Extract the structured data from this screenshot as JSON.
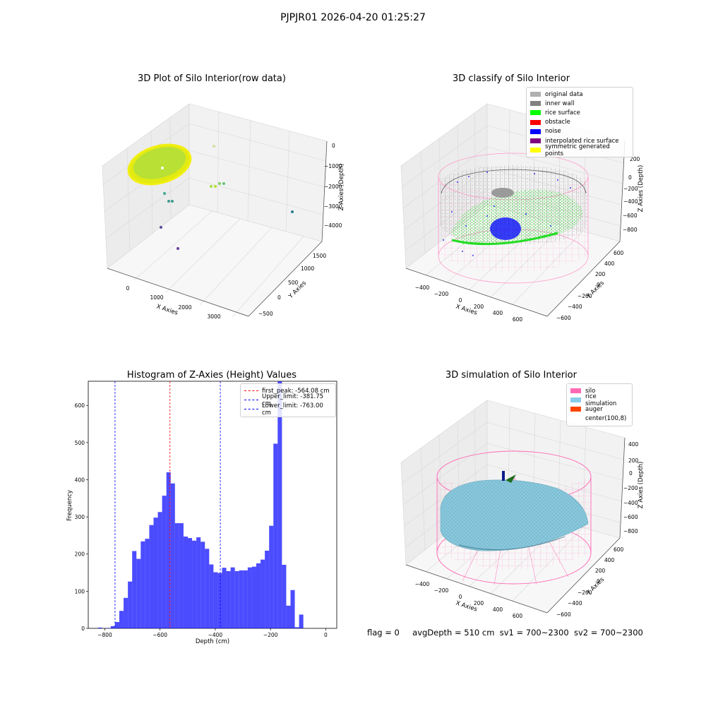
{
  "figure": {
    "suptitle": "PJPJR01 2026-04-20 01:25:27",
    "footer": {
      "flag": "flag = 0",
      "avg_depth": "avgDepth = 510 cm",
      "sv1": "sv1 = 700~2300",
      "sv2": "sv2 = 700~2300"
    }
  },
  "panels": {
    "raw": {
      "title": "3D Plot of Silo Interior(row data)",
      "xlabel": "X Axies",
      "ylabel": "Y Axies",
      "zlabel": "Z Axies (Depth)",
      "xticks": [
        "0",
        "1000",
        "2000",
        "3000"
      ],
      "yticks": [
        "−500",
        "0",
        "500",
        "1000",
        "1500"
      ],
      "zticks": [
        "0",
        "−1000",
        "−2000",
        "−3000",
        "−4000"
      ]
    },
    "classify": {
      "title": "3D classify of Silo Interior",
      "xlabel": "X Axies",
      "ylabel": "Y Axies",
      "zlabel": "Z Axies (Depth)",
      "xticks": [
        "−400",
        "−200",
        "0",
        "200",
        "400",
        "600"
      ],
      "yticks": [
        "−600",
        "−400",
        "−200",
        "0",
        "200",
        "400",
        "600"
      ],
      "zticks": [
        "200",
        "0",
        "−200",
        "−400",
        "−600",
        "−800"
      ],
      "legend": [
        {
          "label": "original data",
          "color": "#b0b0b0"
        },
        {
          "label": "inner wall",
          "color": "#808080"
        },
        {
          "label": "rice surface",
          "color": "#00ff00"
        },
        {
          "label": "obstacle",
          "color": "#ff0000"
        },
        {
          "label": "noise",
          "color": "#0000ff"
        },
        {
          "label": "interpolated rice surface",
          "color": "#800080"
        },
        {
          "label": "symmetric generated points",
          "color": "#ffff00"
        }
      ]
    },
    "simulation": {
      "title": "3D simulation of Silo Interior",
      "xlabel": "X Axies",
      "ylabel": "Y Axies",
      "zlabel": "Z Axies (Depth)",
      "xticks": [
        "−400",
        "−200",
        "0",
        "200",
        "400",
        "600"
      ],
      "yticks": [
        "−600",
        "−400",
        "−200",
        "0",
        "200",
        "400",
        "600"
      ],
      "zticks": [
        "400",
        "200",
        "0",
        "−200",
        "−400",
        "−600",
        "−800"
      ],
      "legend": [
        {
          "label": "silo",
          "color": "#ff69b4"
        },
        {
          "label": "rice simulation",
          "color": "#87ceeb"
        },
        {
          "label": "auger",
          "color": "#ff4500"
        },
        {
          "label": "center(100,8)",
          "color": "#ffffff"
        }
      ]
    }
  },
  "chart_data": [
    {
      "type": "scatter",
      "title": "3D Plot of Silo Interior(row data)",
      "xlabel": "X Axies",
      "ylabel": "Y Axies",
      "zlabel": "Z Axies (Depth)",
      "xlim": [
        -500,
        3500
      ],
      "ylim": [
        -700,
        1700
      ],
      "zlim": [
        -4500,
        300
      ]
    },
    {
      "type": "scatter",
      "title": "3D classify of Silo Interior",
      "xlabel": "X Axies",
      "ylabel": "Y Axies",
      "zlabel": "Z Axies (Depth)",
      "series": [
        {
          "name": "original data"
        },
        {
          "name": "inner wall"
        },
        {
          "name": "rice surface"
        },
        {
          "name": "obstacle"
        },
        {
          "name": "noise"
        },
        {
          "name": "interpolated rice surface"
        },
        {
          "name": "symmetric generated points"
        }
      ]
    },
    {
      "type": "bar",
      "title": "Histogram of Z-Axies (Height) Values",
      "xlabel": "Depth (cm)",
      "ylabel": "Frequency",
      "xlim": [
        -860,
        40
      ],
      "ylim": [
        0,
        665
      ],
      "xticks": [
        -800,
        -600,
        -400,
        -200,
        0
      ],
      "yticks": [
        0,
        100,
        200,
        300,
        400,
        500,
        600
      ],
      "bar_color": "#0000ff",
      "bin_start": -825,
      "bin_width": 15.5,
      "values": [
        2,
        0,
        1,
        6,
        17,
        47,
        82,
        126,
        208,
        187,
        234,
        241,
        278,
        298,
        313,
        357,
        420,
        390,
        283,
        283,
        247,
        243,
        236,
        245,
        233,
        214,
        172,
        151,
        149,
        163,
        154,
        164,
        154,
        156,
        156,
        164,
        166,
        175,
        185,
        209,
        276,
        497,
        665,
        171,
        61,
        103,
        3,
        37
      ],
      "lines": [
        {
          "label": "first_peak: -564.08 cm",
          "x": -564.08,
          "color": "#ff0000"
        },
        {
          "label": "Upper_limit: -381.75 cm",
          "x": -381.75,
          "color": "#0000ff"
        },
        {
          "label": "Lower_limit: -763.00 cm",
          "x": -763.0,
          "color": "#0000ff"
        }
      ]
    },
    {
      "type": "scatter",
      "title": "3D simulation of Silo Interior",
      "xlabel": "X Axies",
      "ylabel": "Y Axies",
      "zlabel": "Z Axies (Depth)",
      "series": [
        {
          "name": "silo"
        },
        {
          "name": "rice simulation"
        },
        {
          "name": "auger"
        },
        {
          "name": "center(100,8)"
        }
      ]
    }
  ]
}
